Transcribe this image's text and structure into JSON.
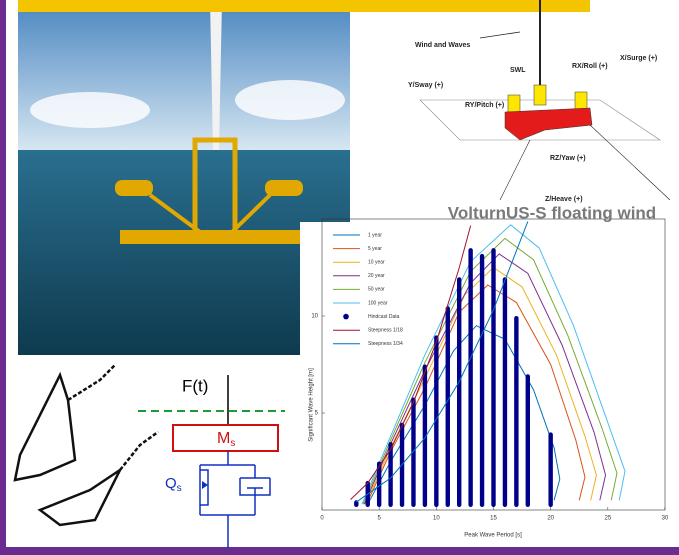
{
  "diagram_labels": {
    "wind": "Wind and Waves",
    "swl": "SWL",
    "roll": "RX/Roll (+)",
    "surge": "X/Surge (+)",
    "sway": "Y/Sway (+)",
    "pitch": "RY/Pitch (+)",
    "yaw": "RZ/Yaw (+)",
    "heave": "Z/Heave (+)"
  },
  "spring_model": {
    "force": "F(t)",
    "mass": "M",
    "mass_sub": "s",
    "q": "Q",
    "q_sub": "s"
  },
  "chart_data": {
    "type": "line",
    "title": "VolturnUS-S floating wind",
    "x_label": "Peak Wave Period [s]",
    "y_label": "Significant Wave Height [m]",
    "xlim": [
      0,
      30
    ],
    "ylim": [
      0,
      15
    ],
    "xticks": [
      0,
      5,
      10,
      15,
      20,
      25,
      30
    ],
    "yticks": [
      5,
      10
    ],
    "legend": "upper left",
    "series": [
      {
        "name": "1 year",
        "color": "#0072bd",
        "style": "line",
        "x": [
          4,
          6,
          9,
          11.5,
          13.5,
          16,
          18.5,
          20.3,
          20.8,
          20.3
        ],
        "values": [
          0.3,
          2.5,
          5.4,
          8.2,
          9.5,
          8.8,
          6.2,
          3.2,
          1.6,
          0.5
        ]
      },
      {
        "name": "5 year",
        "color": "#d95319",
        "style": "line",
        "x": [
          3.9,
          6,
          9,
          12,
          14.5,
          17,
          20,
          22.2,
          23,
          22.5
        ],
        "values": [
          0.3,
          3,
          6.3,
          10.2,
          11.6,
          10.7,
          7.5,
          3.6,
          1.7,
          0.5
        ]
      },
      {
        "name": "10 year",
        "color": "#edb120",
        "style": "line",
        "x": [
          3.8,
          6,
          9,
          12.5,
          15,
          17.5,
          20.5,
          23,
          24,
          23.5
        ],
        "values": [
          0.3,
          3.2,
          6.8,
          11.1,
          12.5,
          11.5,
          8,
          3.8,
          1.8,
          0.5
        ]
      },
      {
        "name": "20 year",
        "color": "#7e2f8e",
        "style": "line",
        "x": [
          3.7,
          6,
          9,
          13,
          15.5,
          18,
          21,
          23.8,
          24.8,
          24.3
        ],
        "values": [
          0.3,
          3.4,
          7.2,
          11.7,
          13.2,
          12.2,
          8.5,
          4,
          1.8,
          0.5
        ]
      },
      {
        "name": "50 year",
        "color": "#77ac30",
        "style": "line",
        "x": [
          3.6,
          6,
          9,
          13,
          16,
          18.5,
          21.5,
          24.5,
          25.8,
          25.3
        ],
        "values": [
          0.3,
          3.6,
          7.6,
          12.3,
          14,
          12.9,
          9,
          4.2,
          1.9,
          0.5
        ]
      },
      {
        "name": "100 year",
        "color": "#4dbeee",
        "style": "line",
        "x": [
          3.5,
          6,
          9,
          13,
          16.5,
          19,
          22,
          25,
          26.5,
          26
        ],
        "values": [
          0.3,
          3.8,
          8,
          12.8,
          14.7,
          13.5,
          9.5,
          4.5,
          2,
          0.5
        ]
      },
      {
        "name": "Hindcast Data",
        "color": "#00008b",
        "style": "columns",
        "x": [
          3,
          4,
          5,
          6,
          7,
          8,
          9,
          10,
          11,
          12,
          13,
          14,
          15,
          16,
          17,
          18,
          20
        ],
        "values": [
          0.5,
          1.5,
          2.5,
          3.5,
          4.5,
          5.8,
          7.5,
          9,
          10.5,
          12,
          13.5,
          13.2,
          13.5,
          12,
          10,
          7,
          4
        ]
      },
      {
        "name": "Steepness 1/18",
        "color": "#a2142f",
        "style": "line",
        "x": [
          2.5,
          4,
          6,
          8,
          10,
          12,
          13
        ],
        "values": [
          0.54,
          1.39,
          3.12,
          5.55,
          8.67,
          12.48,
          14.66
        ]
      },
      {
        "name": "Steepness 1/34",
        "color": "#0072bd",
        "style": "line",
        "x": [
          3,
          6,
          9,
          12,
          15,
          18
        ],
        "values": [
          0.41,
          1.65,
          3.72,
          6.61,
          10.32,
          14.87
        ]
      }
    ]
  }
}
